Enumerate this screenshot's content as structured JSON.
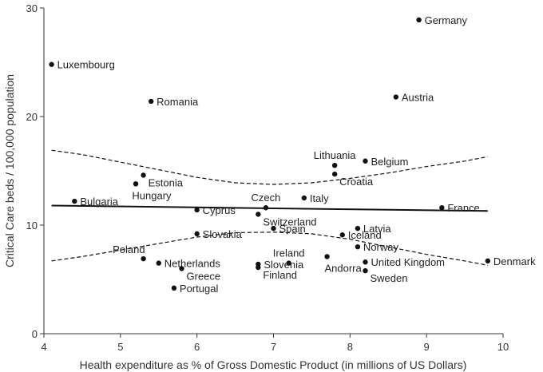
{
  "chart_data": {
    "type": "scatter",
    "title": "",
    "xlabel": "Health expenditure as % of Gross Domestic Product  (in millions of US Dollars)",
    "ylabel": "Critical Care  beds / 100,000 population",
    "xlim": [
      4,
      10
    ],
    "ylim": [
      0,
      30
    ],
    "x_ticks": [
      "4",
      "5",
      "6",
      "7",
      "8",
      "9",
      "10"
    ],
    "y_ticks": [
      "0",
      "10",
      "20",
      "30"
    ],
    "grid": false,
    "points": [
      {
        "label": "Germany",
        "x": 8.9,
        "y": 28.9,
        "anchor": "right"
      },
      {
        "label": "Luxembourg",
        "x": 4.1,
        "y": 24.8,
        "anchor": "right"
      },
      {
        "label": "Romania",
        "x": 5.4,
        "y": 21.4,
        "anchor": "right"
      },
      {
        "label": "Austria",
        "x": 8.6,
        "y": 21.8,
        "anchor": "right"
      },
      {
        "label": "Lithuania",
        "x": 7.8,
        "y": 15.5,
        "anchor": "above"
      },
      {
        "label": "Belgium",
        "x": 8.2,
        "y": 15.9,
        "anchor": "right"
      },
      {
        "label": "Croatia",
        "x": 7.8,
        "y": 14.7,
        "anchor": "below-right"
      },
      {
        "label": "Estonia",
        "x": 5.3,
        "y": 14.6,
        "anchor": "below-right"
      },
      {
        "label": "Hungary",
        "x": 5.2,
        "y": 13.8,
        "anchor": "below"
      },
      {
        "label": "Bulgaria",
        "x": 4.4,
        "y": 12.2,
        "anchor": "right"
      },
      {
        "label": "Czech",
        "x": 6.9,
        "y": 11.6,
        "anchor": "above"
      },
      {
        "label": "Italy",
        "x": 7.4,
        "y": 12.5,
        "anchor": "right"
      },
      {
        "label": "France",
        "x": 9.2,
        "y": 11.6,
        "anchor": "right"
      },
      {
        "label": "Cyprus",
        "x": 6.0,
        "y": 11.4,
        "anchor": "right"
      },
      {
        "label": "Switzerland",
        "x": 6.8,
        "y": 11.0,
        "anchor": "below-right"
      },
      {
        "label": "Latvia",
        "x": 8.1,
        "y": 9.7,
        "anchor": "right"
      },
      {
        "label": "Spain",
        "x": 7.0,
        "y": 9.7,
        "anchor": "right"
      },
      {
        "label": "Iceland",
        "x": 7.9,
        "y": 9.1,
        "anchor": "right"
      },
      {
        "label": "Slovakia",
        "x": 6.0,
        "y": 9.2,
        "anchor": "right"
      },
      {
        "label": "Norway",
        "x": 8.1,
        "y": 8.0,
        "anchor": "right"
      },
      {
        "label": "Poland",
        "x": 5.3,
        "y": 6.9,
        "anchor": "above-left"
      },
      {
        "label": "Netherlands",
        "x": 5.5,
        "y": 6.5,
        "anchor": "right"
      },
      {
        "label": "Greece",
        "x": 5.8,
        "y": 6.0,
        "anchor": "below-right"
      },
      {
        "label": "Ireland",
        "x": 7.2,
        "y": 6.5,
        "anchor": "above"
      },
      {
        "label": "Slovenia",
        "x": 6.8,
        "y": 6.4,
        "anchor": "right"
      },
      {
        "label": "Finland",
        "x": 6.8,
        "y": 6.1,
        "anchor": "below-right"
      },
      {
        "label": "Andorra",
        "x": 7.7,
        "y": 7.1,
        "anchor": "below"
      },
      {
        "label": "United Kingdom",
        "x": 8.2,
        "y": 6.6,
        "anchor": "right"
      },
      {
        "label": "Sweden",
        "x": 8.2,
        "y": 5.8,
        "anchor": "below-right"
      },
      {
        "label": "Denmark",
        "x": 9.8,
        "y": 6.7,
        "anchor": "right"
      },
      {
        "label": "Portugal",
        "x": 5.7,
        "y": 4.2,
        "anchor": "right"
      }
    ],
    "regression_line": {
      "x": [
        4.1,
        9.8
      ],
      "y": [
        11.8,
        11.3
      ]
    },
    "confidence_upper": {
      "x": [
        4.1,
        4.5,
        5.0,
        5.5,
        6.0,
        6.5,
        7.0,
        7.5,
        8.0,
        8.5,
        9.0,
        9.5,
        9.8
      ],
      "y": [
        16.9,
        16.5,
        15.8,
        15.1,
        14.4,
        13.9,
        13.75,
        13.9,
        14.3,
        14.8,
        15.4,
        15.9,
        16.3
      ]
    },
    "confidence_lower": {
      "x": [
        4.1,
        4.5,
        5.0,
        5.5,
        6.0,
        6.5,
        7.0,
        7.5,
        8.0,
        8.5,
        9.0,
        9.5,
        9.8
      ],
      "y": [
        6.7,
        7.1,
        7.7,
        8.3,
        8.9,
        9.3,
        9.35,
        9.2,
        8.7,
        8.0,
        7.3,
        6.7,
        6.3
      ]
    },
    "colors": {
      "points": "#111111",
      "line": "#111111",
      "axis": "#333333"
    }
  }
}
